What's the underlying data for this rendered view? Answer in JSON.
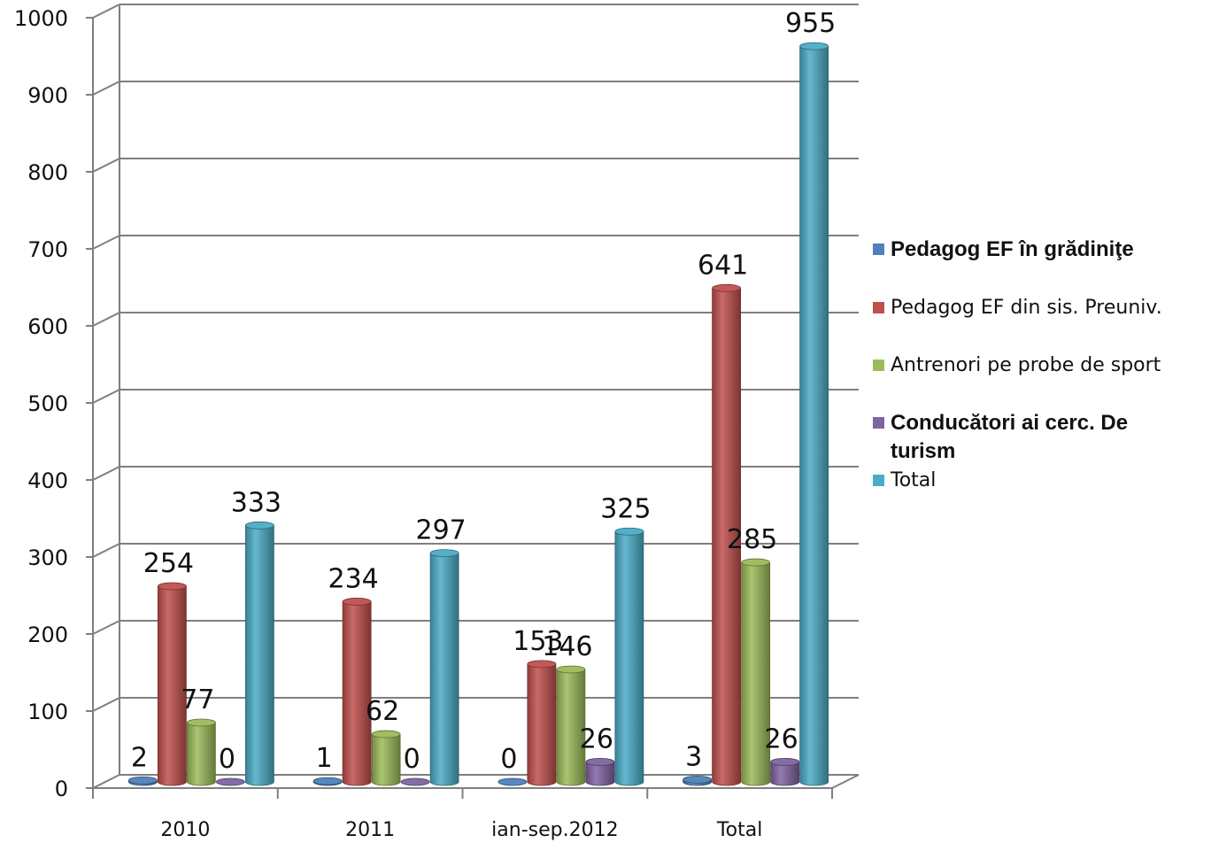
{
  "chart_data": {
    "type": "bar",
    "title": "",
    "xlabel": "",
    "ylabel": "",
    "ylim": [
      0,
      1000
    ],
    "yticks": [
      0,
      100,
      200,
      300,
      400,
      500,
      600,
      700,
      800,
      900,
      1000
    ],
    "grid": true,
    "legend_position": "right",
    "categories": [
      "2010",
      "2011",
      "ian-sep.2012",
      "Total"
    ],
    "series": [
      {
        "name": "Pedagog EF în grădiniţe",
        "color": "#4f81bd",
        "values": [
          2,
          1,
          0,
          3
        ],
        "labels": [
          "2",
          "1",
          "0",
          "3"
        ]
      },
      {
        "name": "Pedagog EF din sis. Preuniv.",
        "color": "#c0504d",
        "values": [
          254,
          234,
          153,
          641
        ],
        "labels": [
          "254",
          "234",
          "153",
          "641"
        ]
      },
      {
        "name": "Antrenori pe probe de sport",
        "color": "#9bbb59",
        "values": [
          77,
          62,
          146,
          285
        ],
        "labels": [
          "77",
          "62",
          "146",
          "285"
        ]
      },
      {
        "name": "Conducători ai cerc. De turism",
        "color": "#8064a2",
        "values": [
          0,
          0,
          26,
          26
        ],
        "labels": [
          "0",
          "0",
          "26",
          "26"
        ]
      },
      {
        "name": "Total",
        "color": "#4bacc6",
        "values": [
          333,
          297,
          325,
          955
        ],
        "labels": [
          "333",
          "297",
          "325",
          "955"
        ]
      }
    ]
  },
  "legend": {
    "items": [
      {
        "label": "Pedagog EF în grădiniţe",
        "color": "#4f81bd",
        "bold": true
      },
      {
        "label": "Pedagog EF din sis. Preuniv.",
        "color": "#c0504d",
        "bold": false
      },
      {
        "label": "Antrenori pe probe de sport",
        "color": "#9bbb59",
        "bold": false
      },
      {
        "label": "Conducători ai cerc. De turism",
        "color": "#8064a2",
        "bold": true
      },
      {
        "label": "Total",
        "color": "#4bacc6",
        "bold": false
      }
    ]
  }
}
